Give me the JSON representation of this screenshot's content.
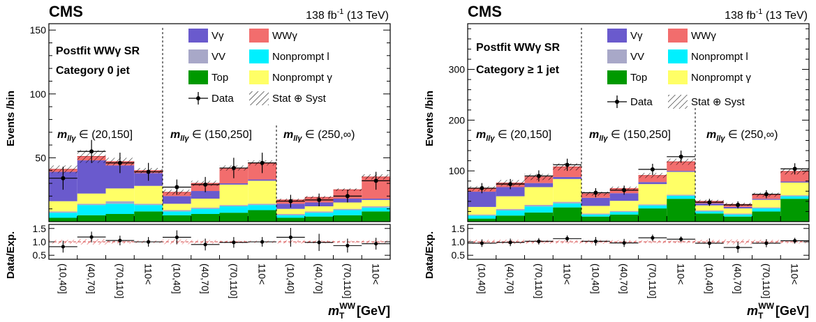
{
  "panels": [
    {
      "cms_label": "CMS",
      "lumi_label": "138 fb",
      "lumi_sup": "-1",
      "lumi_energy": " (13 TeV)",
      "region_line1": "Postfit WWγ SR",
      "region_line2": "Category 0 jet",
      "ylabel_top": "Events /bin",
      "ylabel_bottom": "Data/Exp.",
      "xlabel": "[GeV]",
      "xlabel_var": "m",
      "xlabel_sup": "WW",
      "xlabel_sub": "T",
      "mass_bins": [
        "(20,150]",
        "(150,250]",
        "(250,∞)"
      ],
      "mass_bin_var": "m",
      "mass_bin_sub": "llγ",
      "mass_bin_op": " ∈ ",
      "legend": [
        {
          "label": "Vγ",
          "color": "#6a5acd"
        },
        {
          "label": "WWγ",
          "color": "#f26d6d"
        },
        {
          "label": "VV",
          "color": "#a8a8c8"
        },
        {
          "label": "Nonprompt l",
          "color": "#00f0ff"
        },
        {
          "label": "Top",
          "color": "#009900"
        },
        {
          "label": "Nonprompt γ",
          "color": "#ffff66"
        },
        {
          "label": "Data",
          "color": "#000000"
        },
        {
          "label": "Stat ⊕ Syst",
          "color": "#000000"
        }
      ],
      "chart_data": {
        "type": "bar",
        "stacked": true,
        "categories": [
          "(10,40]",
          "(40,70]",
          "(70,110]",
          "110<",
          "(10,40]",
          "(40,70]",
          "(70,110]",
          "110<",
          "(10,40]",
          "(40,70]",
          "(70,110]",
          "110<"
        ],
        "ylim": [
          0,
          155
        ],
        "yticks": [
          50,
          100,
          150
        ],
        "series": [
          {
            "name": "Top",
            "color": "#009900",
            "values": [
              3,
              5,
              6,
              8,
              5,
              6,
              7,
              9,
              3,
              4,
              5,
              8
            ]
          },
          {
            "name": "Nonprompt l",
            "color": "#00f0ff",
            "values": [
              4,
              8,
              8,
              5,
              3,
              4,
              5,
              4,
              2,
              3,
              4,
              3
            ]
          },
          {
            "name": "VV",
            "color": "#a8a8c8",
            "values": [
              1,
              1,
              2,
              1,
              1,
              1,
              1,
              1,
              1,
              1,
              1,
              1
            ]
          },
          {
            "name": "Nonprompt γ",
            "color": "#ffff66",
            "values": [
              8,
              8,
              10,
              14,
              5,
              7,
              16,
              18,
              4,
              4,
              5,
              5
            ]
          },
          {
            "name": "Vγ",
            "color": "#6a5acd",
            "values": [
              23,
              26,
              18,
              10,
              6,
              6,
              1,
              1,
              4,
              3,
              3,
              1
            ]
          },
          {
            "name": "WWγ",
            "color": "#f26d6d",
            "values": [
              2,
              3,
              3,
              2,
              3,
              6,
              12,
              13,
              3,
              4,
              7,
              17
            ]
          }
        ],
        "data": [
          34,
          55,
          46,
          39,
          27,
          29,
          42,
          46,
          16,
          17,
          20,
          32
        ],
        "data_err": [
          9,
          9,
          8,
          7,
          6,
          6,
          8,
          8,
          5,
          5,
          5,
          7
        ],
        "unc": [
          3,
          5,
          3,
          2,
          2,
          2,
          2,
          2,
          1,
          1,
          1,
          2
        ],
        "ratio": [
          0.82,
          1.18,
          1.05,
          1.0,
          1.17,
          0.9,
          0.98,
          1.0,
          1.17,
          0.98,
          0.86,
          0.93
        ],
        "ratio_err": [
          0.22,
          0.2,
          0.18,
          0.18,
          0.26,
          0.22,
          0.2,
          0.18,
          0.35,
          0.32,
          0.26,
          0.22
        ],
        "ratio_ylim": [
          0.35,
          1.65
        ],
        "ratio_ticks": [
          "0.5",
          "1.0",
          "1.5"
        ]
      }
    },
    {
      "cms_label": "CMS",
      "lumi_label": "138 fb",
      "lumi_sup": "-1",
      "lumi_energy": " (13 TeV)",
      "region_line1": "Postfit WWγ SR",
      "region_line2": "Category ≥ 1 jet",
      "ylabel_top": "Events /bin",
      "ylabel_bottom": "Data/Exp.",
      "xlabel": "[GeV]",
      "xlabel_var": "m",
      "xlabel_sup": "WW",
      "xlabel_sub": "T",
      "mass_bins": [
        "(20,150]",
        "(150,250]",
        "(250,∞)"
      ],
      "mass_bin_var": "m",
      "mass_bin_sub": "llγ",
      "mass_bin_op": " ∈ ",
      "legend": [
        {
          "label": "Vγ",
          "color": "#6a5acd"
        },
        {
          "label": "WWγ",
          "color": "#f26d6d"
        },
        {
          "label": "VV",
          "color": "#a8a8c8"
        },
        {
          "label": "Nonprompt l",
          "color": "#00f0ff"
        },
        {
          "label": "Top",
          "color": "#009900"
        },
        {
          "label": "Nonprompt γ",
          "color": "#ffff66"
        },
        {
          "label": "Data",
          "color": "#000000"
        },
        {
          "label": "Stat ⊕ Syst",
          "color": "#000000"
        }
      ],
      "chart_data": {
        "type": "bar",
        "stacked": true,
        "categories": [
          "(10,40]",
          "(40,70]",
          "(70,110]",
          "110<",
          "(10,40]",
          "(40,70]",
          "(70,110]",
          "110<",
          "(10,40]",
          "(40,70]",
          "(70,110]",
          "110<"
        ],
        "ylim": [
          0,
          390
        ],
        "yticks": [
          100,
          200,
          300
        ],
        "series": [
          {
            "name": "Top",
            "color": "#009900",
            "values": [
              6,
              12,
              18,
              28,
              10,
              14,
              26,
              45,
              16,
              10,
              20,
              45
            ]
          },
          {
            "name": "Nonprompt l",
            "color": "#00f0ff",
            "values": [
              6,
              10,
              12,
              8,
              4,
              5,
              6,
              6,
              4,
              4,
              6,
              5
            ]
          },
          {
            "name": "VV",
            "color": "#a8a8c8",
            "values": [
              2,
              3,
              3,
              3,
              2,
              2,
              2,
              2,
              2,
              2,
              2,
              2
            ]
          },
          {
            "name": "Nonprompt γ",
            "color": "#ffff66",
            "values": [
              15,
              25,
              35,
              45,
              15,
              20,
              40,
              45,
              10,
              10,
              15,
              25
            ]
          },
          {
            "name": "Vγ",
            "color": "#6a5acd",
            "values": [
              30,
              18,
              8,
              4,
              16,
              15,
              4,
              2,
              4,
              3,
              2,
              2
            ]
          },
          {
            "name": "WWγ",
            "color": "#f26d6d",
            "values": [
              6,
              8,
              12,
              20,
              8,
              9,
              13,
              18,
              4,
              5,
              8,
              20
            ]
          }
        ],
        "data": [
          66,
          74,
          90,
          112,
          57,
          62,
          103,
          128,
          38,
          33,
          54,
          104
        ],
        "data_err": [
          10,
          10,
          11,
          12,
          9,
          9,
          11,
          12,
          7,
          7,
          8,
          11
        ],
        "unc": [
          5,
          6,
          6,
          7,
          4,
          4,
          5,
          6,
          3,
          3,
          4,
          6
        ],
        "ratio": [
          0.95,
          0.98,
          1.02,
          1.12,
          1.02,
          0.96,
          1.15,
          1.1,
          0.95,
          0.79,
          0.95,
          1.04
        ],
        "ratio_err": [
          0.14,
          0.14,
          0.12,
          0.12,
          0.16,
          0.15,
          0.12,
          0.1,
          0.18,
          0.2,
          0.15,
          0.11
        ],
        "ratio_ylim": [
          0.35,
          1.65
        ],
        "ratio_ticks": [
          "0.5",
          "1.0",
          "1.5"
        ]
      }
    }
  ]
}
